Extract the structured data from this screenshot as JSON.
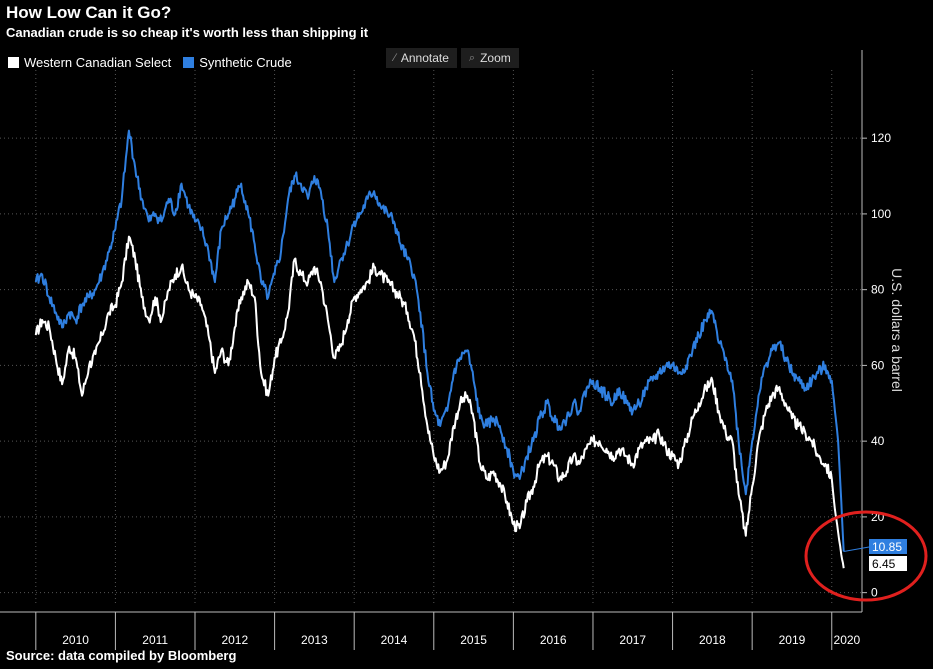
{
  "header": {
    "title": "How Low Can it Go?",
    "subtitle": "Canadian crude is so cheap it's worth less than shipping it"
  },
  "footer": {
    "source": "Source: data compiled by Bloomberg"
  },
  "toolbar": {
    "annotate_label": "Annotate",
    "zoom_label": "Zoom",
    "annotate_icon": "pencil-icon",
    "zoom_icon": "magnifier-icon"
  },
  "colors": {
    "wcs": "#ffffff",
    "synthetic": "#2f7fe0",
    "highlight_circle": "#e0201e",
    "background": "#000000"
  },
  "chart_data": {
    "type": "line",
    "ylabel": "U.S. dollars a barrel",
    "ylim": [
      -3,
      138
    ],
    "yticks": [
      0,
      20,
      40,
      60,
      80,
      100,
      120
    ],
    "xticks": [
      "2010",
      "2011",
      "2012",
      "2013",
      "2014",
      "2015",
      "2016",
      "2017",
      "2018",
      "2019",
      "2020"
    ],
    "grid": true,
    "legend_placement": "top-left",
    "series": [
      {
        "name": "Western Canadian Select",
        "color": "#ffffff",
        "last_value": "6.45",
        "points": [
          [
            2010.0,
            68
          ],
          [
            2010.08,
            72
          ],
          [
            2010.17,
            70
          ],
          [
            2010.25,
            62
          ],
          [
            2010.33,
            55
          ],
          [
            2010.42,
            65
          ],
          [
            2010.5,
            62
          ],
          [
            2010.58,
            52
          ],
          [
            2010.67,
            60
          ],
          [
            2010.75,
            63
          ],
          [
            2010.83,
            68
          ],
          [
            2010.92,
            74
          ],
          [
            2011.0,
            76
          ],
          [
            2011.08,
            82
          ],
          [
            2011.17,
            94
          ],
          [
            2011.25,
            88
          ],
          [
            2011.33,
            78
          ],
          [
            2011.42,
            72
          ],
          [
            2011.5,
            78
          ],
          [
            2011.58,
            72
          ],
          [
            2011.67,
            80
          ],
          [
            2011.75,
            84
          ],
          [
            2011.83,
            86
          ],
          [
            2011.92,
            80
          ],
          [
            2012.0,
            78
          ],
          [
            2012.08,
            76
          ],
          [
            2012.17,
            68
          ],
          [
            2012.25,
            58
          ],
          [
            2012.33,
            64
          ],
          [
            2012.42,
            60
          ],
          [
            2012.5,
            70
          ],
          [
            2012.58,
            78
          ],
          [
            2012.67,
            82
          ],
          [
            2012.75,
            78
          ],
          [
            2012.83,
            58
          ],
          [
            2012.92,
            52
          ],
          [
            2013.0,
            62
          ],
          [
            2013.08,
            66
          ],
          [
            2013.17,
            74
          ],
          [
            2013.25,
            88
          ],
          [
            2013.33,
            84
          ],
          [
            2013.42,
            82
          ],
          [
            2013.5,
            86
          ],
          [
            2013.58,
            82
          ],
          [
            2013.67,
            72
          ],
          [
            2013.75,
            62
          ],
          [
            2013.83,
            65
          ],
          [
            2013.92,
            72
          ],
          [
            2014.0,
            78
          ],
          [
            2014.08,
            80
          ],
          [
            2014.17,
            82
          ],
          [
            2014.25,
            86
          ],
          [
            2014.33,
            84
          ],
          [
            2014.42,
            82
          ],
          [
            2014.5,
            80
          ],
          [
            2014.58,
            78
          ],
          [
            2014.67,
            74
          ],
          [
            2014.75,
            68
          ],
          [
            2014.83,
            58
          ],
          [
            2014.92,
            44
          ],
          [
            2015.0,
            36
          ],
          [
            2015.08,
            32
          ],
          [
            2015.17,
            35
          ],
          [
            2015.25,
            44
          ],
          [
            2015.33,
            50
          ],
          [
            2015.42,
            52
          ],
          [
            2015.5,
            46
          ],
          [
            2015.58,
            34
          ],
          [
            2015.67,
            30
          ],
          [
            2015.75,
            32
          ],
          [
            2015.83,
            29
          ],
          [
            2015.92,
            24
          ],
          [
            2016.0,
            18
          ],
          [
            2016.08,
            17
          ],
          [
            2016.17,
            24
          ],
          [
            2016.25,
            28
          ],
          [
            2016.33,
            34
          ],
          [
            2016.42,
            36
          ],
          [
            2016.5,
            34
          ],
          [
            2016.58,
            30
          ],
          [
            2016.67,
            32
          ],
          [
            2016.75,
            36
          ],
          [
            2016.83,
            34
          ],
          [
            2016.92,
            38
          ],
          [
            2017.0,
            40
          ],
          [
            2017.08,
            40
          ],
          [
            2017.17,
            38
          ],
          [
            2017.25,
            36
          ],
          [
            2017.33,
            38
          ],
          [
            2017.42,
            36
          ],
          [
            2017.5,
            34
          ],
          [
            2017.58,
            38
          ],
          [
            2017.67,
            40
          ],
          [
            2017.75,
            40
          ],
          [
            2017.83,
            42
          ],
          [
            2017.92,
            38
          ],
          [
            2018.0,
            36
          ],
          [
            2018.08,
            34
          ],
          [
            2018.17,
            40
          ],
          [
            2018.25,
            46
          ],
          [
            2018.33,
            50
          ],
          [
            2018.42,
            54
          ],
          [
            2018.5,
            56
          ],
          [
            2018.58,
            48
          ],
          [
            2018.67,
            42
          ],
          [
            2018.75,
            40
          ],
          [
            2018.83,
            26
          ],
          [
            2018.92,
            15
          ],
          [
            2019.0,
            28
          ],
          [
            2019.08,
            40
          ],
          [
            2019.17,
            48
          ],
          [
            2019.25,
            52
          ],
          [
            2019.33,
            54
          ],
          [
            2019.42,
            50
          ],
          [
            2019.5,
            46
          ],
          [
            2019.58,
            44
          ],
          [
            2019.67,
            42
          ],
          [
            2019.75,
            40
          ],
          [
            2019.83,
            36
          ],
          [
            2019.92,
            34
          ],
          [
            2020.0,
            30
          ],
          [
            2020.04,
            22
          ],
          [
            2020.08,
            16
          ],
          [
            2020.12,
            10
          ],
          [
            2020.15,
            6.45
          ]
        ]
      },
      {
        "name": "Synthetic Crude",
        "color": "#2f7fe0",
        "last_value": "10.85",
        "points": [
          [
            2010.0,
            82
          ],
          [
            2010.08,
            84
          ],
          [
            2010.17,
            78
          ],
          [
            2010.25,
            74
          ],
          [
            2010.33,
            70
          ],
          [
            2010.42,
            74
          ],
          [
            2010.5,
            72
          ],
          [
            2010.58,
            76
          ],
          [
            2010.67,
            78
          ],
          [
            2010.75,
            80
          ],
          [
            2010.83,
            84
          ],
          [
            2010.92,
            90
          ],
          [
            2011.0,
            96
          ],
          [
            2011.08,
            104
          ],
          [
            2011.17,
            122
          ],
          [
            2011.25,
            112
          ],
          [
            2011.33,
            104
          ],
          [
            2011.42,
            98
          ],
          [
            2011.5,
            100
          ],
          [
            2011.58,
            98
          ],
          [
            2011.67,
            104
          ],
          [
            2011.75,
            100
          ],
          [
            2011.83,
            108
          ],
          [
            2011.92,
            102
          ],
          [
            2012.0,
            98
          ],
          [
            2012.08,
            96
          ],
          [
            2012.17,
            90
          ],
          [
            2012.25,
            82
          ],
          [
            2012.33,
            96
          ],
          [
            2012.42,
            100
          ],
          [
            2012.5,
            104
          ],
          [
            2012.58,
            108
          ],
          [
            2012.67,
            100
          ],
          [
            2012.75,
            92
          ],
          [
            2012.83,
            82
          ],
          [
            2012.92,
            78
          ],
          [
            2013.0,
            84
          ],
          [
            2013.08,
            90
          ],
          [
            2013.17,
            104
          ],
          [
            2013.25,
            110
          ],
          [
            2013.33,
            108
          ],
          [
            2013.42,
            104
          ],
          [
            2013.5,
            110
          ],
          [
            2013.58,
            106
          ],
          [
            2013.67,
            96
          ],
          [
            2013.75,
            82
          ],
          [
            2013.83,
            88
          ],
          [
            2013.92,
            92
          ],
          [
            2014.0,
            98
          ],
          [
            2014.08,
            100
          ],
          [
            2014.17,
            104
          ],
          [
            2014.25,
            106
          ],
          [
            2014.33,
            102
          ],
          [
            2014.42,
            100
          ],
          [
            2014.5,
            98
          ],
          [
            2014.58,
            92
          ],
          [
            2014.67,
            88
          ],
          [
            2014.75,
            84
          ],
          [
            2014.83,
            74
          ],
          [
            2014.92,
            58
          ],
          [
            2015.0,
            48
          ],
          [
            2015.08,
            44
          ],
          [
            2015.17,
            48
          ],
          [
            2015.25,
            58
          ],
          [
            2015.33,
            62
          ],
          [
            2015.42,
            64
          ],
          [
            2015.5,
            56
          ],
          [
            2015.58,
            46
          ],
          [
            2015.67,
            44
          ],
          [
            2015.75,
            46
          ],
          [
            2015.83,
            44
          ],
          [
            2015.92,
            38
          ],
          [
            2016.0,
            32
          ],
          [
            2016.08,
            30
          ],
          [
            2016.17,
            36
          ],
          [
            2016.25,
            40
          ],
          [
            2016.33,
            46
          ],
          [
            2016.42,
            50
          ],
          [
            2016.5,
            46
          ],
          [
            2016.58,
            44
          ],
          [
            2016.67,
            46
          ],
          [
            2016.75,
            50
          ],
          [
            2016.83,
            48
          ],
          [
            2016.92,
            54
          ],
          [
            2017.0,
            56
          ],
          [
            2017.08,
            54
          ],
          [
            2017.17,
            52
          ],
          [
            2017.25,
            50
          ],
          [
            2017.33,
            54
          ],
          [
            2017.42,
            50
          ],
          [
            2017.5,
            48
          ],
          [
            2017.58,
            50
          ],
          [
            2017.67,
            54
          ],
          [
            2017.75,
            56
          ],
          [
            2017.83,
            58
          ],
          [
            2017.92,
            60
          ],
          [
            2018.0,
            60
          ],
          [
            2018.08,
            58
          ],
          [
            2018.17,
            60
          ],
          [
            2018.25,
            64
          ],
          [
            2018.33,
            68
          ],
          [
            2018.42,
            72
          ],
          [
            2018.5,
            74
          ],
          [
            2018.58,
            66
          ],
          [
            2018.67,
            62
          ],
          [
            2018.75,
            56
          ],
          [
            2018.83,
            40
          ],
          [
            2018.92,
            26
          ],
          [
            2019.0,
            40
          ],
          [
            2019.08,
            52
          ],
          [
            2019.17,
            60
          ],
          [
            2019.25,
            64
          ],
          [
            2019.33,
            66
          ],
          [
            2019.42,
            62
          ],
          [
            2019.5,
            58
          ],
          [
            2019.58,
            56
          ],
          [
            2019.67,
            54
          ],
          [
            2019.75,
            56
          ],
          [
            2019.83,
            58
          ],
          [
            2019.92,
            60
          ],
          [
            2020.0,
            56
          ],
          [
            2020.04,
            48
          ],
          [
            2020.08,
            40
          ],
          [
            2020.12,
            24
          ],
          [
            2020.15,
            10.85
          ]
        ]
      }
    ]
  }
}
